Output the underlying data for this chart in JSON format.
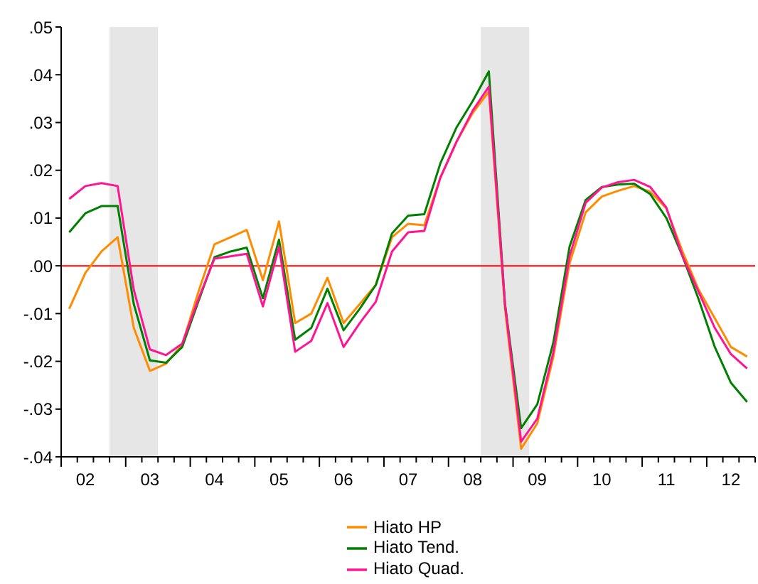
{
  "chart_data": {
    "type": "line",
    "categories": [
      null,
      "02",
      null,
      null,
      null,
      "03",
      null,
      null,
      null,
      "04",
      null,
      null,
      null,
      "05",
      null,
      null,
      null,
      "06",
      null,
      null,
      null,
      "07",
      null,
      null,
      null,
      "08",
      null,
      null,
      null,
      "09",
      null,
      null,
      null,
      "10",
      null,
      null,
      null,
      "11",
      null,
      null,
      null,
      "12",
      null
    ],
    "series": [
      {
        "name": "Hiato HP",
        "color": "#ff8c00",
        "values": [
          -0.009,
          -0.0015,
          0.003,
          0.006,
          -0.013,
          -0.022,
          -0.0205,
          -0.0165,
          -0.0055,
          0.0045,
          0.006,
          0.0075,
          -0.003,
          0.0093,
          -0.012,
          -0.01,
          -0.0025,
          -0.012,
          -0.008,
          -0.004,
          0.006,
          0.0088,
          0.0085,
          0.0185,
          0.026,
          0.032,
          0.0365,
          -0.009,
          -0.0383,
          -0.033,
          -0.019,
          0.0005,
          0.0112,
          0.0145,
          0.0157,
          0.0167,
          0.0155,
          0.012,
          0.003,
          -0.005,
          -0.011,
          -0.017,
          -0.019
        ]
      },
      {
        "name": "Hiato Tend.",
        "color": "#008000",
        "values": [
          0.007,
          0.011,
          0.0125,
          0.0125,
          -0.008,
          -0.0198,
          -0.0203,
          -0.017,
          -0.0075,
          0.0018,
          0.003,
          0.0038,
          -0.0068,
          0.0055,
          -0.0155,
          -0.013,
          -0.0048,
          -0.0135,
          -0.009,
          -0.004,
          0.0068,
          0.0105,
          0.0108,
          0.0215,
          0.029,
          0.0345,
          0.0407,
          -0.008,
          -0.034,
          -0.029,
          -0.016,
          0.004,
          0.0138,
          0.0165,
          0.017,
          0.0172,
          0.015,
          0.01,
          0.002,
          -0.007,
          -0.017,
          -0.0245,
          -0.0285
        ]
      },
      {
        "name": "Hiato Quad.",
        "color": "#ff1493",
        "values": [
          0.014,
          0.0167,
          0.0173,
          0.0167,
          -0.005,
          -0.0175,
          -0.0187,
          -0.0163,
          -0.007,
          0.0015,
          0.002,
          0.0025,
          -0.0085,
          0.004,
          -0.018,
          -0.0157,
          -0.0078,
          -0.017,
          -0.012,
          -0.0075,
          0.003,
          0.007,
          0.0073,
          0.0185,
          0.026,
          0.0325,
          0.0375,
          -0.008,
          -0.0368,
          -0.032,
          -0.018,
          0.002,
          0.0132,
          0.0164,
          0.0175,
          0.018,
          0.0165,
          0.0122,
          0.002,
          -0.0055,
          -0.013,
          -0.0185,
          -0.0215
        ]
      }
    ],
    "ylim": [
      -0.04,
      0.05
    ],
    "yticks": [
      {
        "value": -0.04,
        "label": "-.04"
      },
      {
        "value": -0.03,
        "label": "-.03"
      },
      {
        "value": -0.02,
        "label": "-.02"
      },
      {
        "value": -0.01,
        "label": "-.01"
      },
      {
        "value": 0,
        "label": ".00"
      },
      {
        "value": 0.01,
        "label": ".01"
      },
      {
        "value": 0.02,
        "label": ".02"
      },
      {
        "value": 0.03,
        "label": ".03"
      },
      {
        "value": 0.04,
        "label": ".04"
      },
      {
        "value": 0.05,
        "label": ".05"
      }
    ],
    "ref_lines": [
      {
        "axis": "y",
        "value": 0,
        "label": null,
        "color": "#ff0000"
      }
    ],
    "legend": "bottom",
    "marker": "none",
    "line_style": "solid"
  }
}
